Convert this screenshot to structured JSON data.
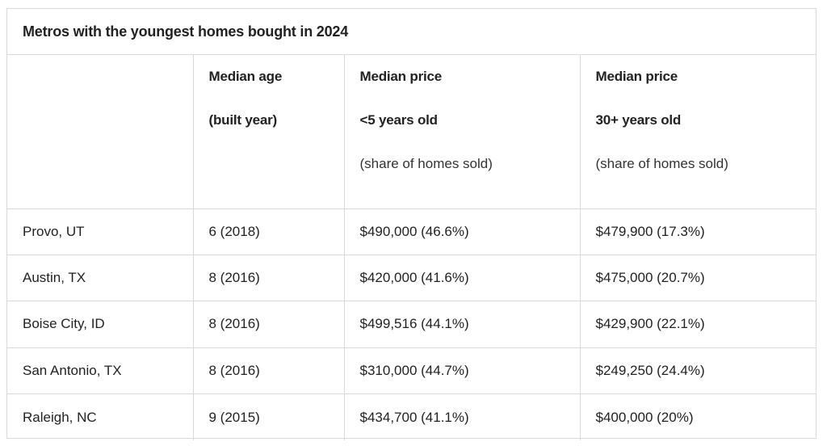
{
  "title": "Metros with the youngest homes bought in 2024",
  "columns": [
    {
      "lines": []
    },
    {
      "lines": [
        "Median age",
        "(built year)"
      ]
    },
    {
      "lines": [
        "Median price",
        "<5 years old",
        "(share of homes sold)"
      ]
    },
    {
      "lines": [
        "Median price",
        "30+ years old",
        "(share of homes sold)"
      ]
    }
  ],
  "rows": [
    {
      "metro": "Provo, UT",
      "median_age": "6 (2018)",
      "price_new": "$490,000 (46.6%)",
      "price_old": "$479,900 (17.3%)"
    },
    {
      "metro": "Austin, TX",
      "median_age": "8 (2016)",
      "price_new": "$420,000 (41.6%)",
      "price_old": "$475,000 (20.7%)"
    },
    {
      "metro": "Boise City, ID",
      "median_age": "8 (2016)",
      "price_new": "$499,516 (44.1%)",
      "price_old": "$429,900 (22.1%)"
    },
    {
      "metro": "San Antonio, TX",
      "median_age": "8 (2016)",
      "price_new": "$310,000 (44.7%)",
      "price_old": "$249,250 (24.4%)"
    },
    {
      "metro": "Raleigh, NC",
      "median_age": "9 (2015)",
      "price_new": "$434,700 (41.1%)",
      "price_old": "$400,000 (20%)"
    }
  ]
}
